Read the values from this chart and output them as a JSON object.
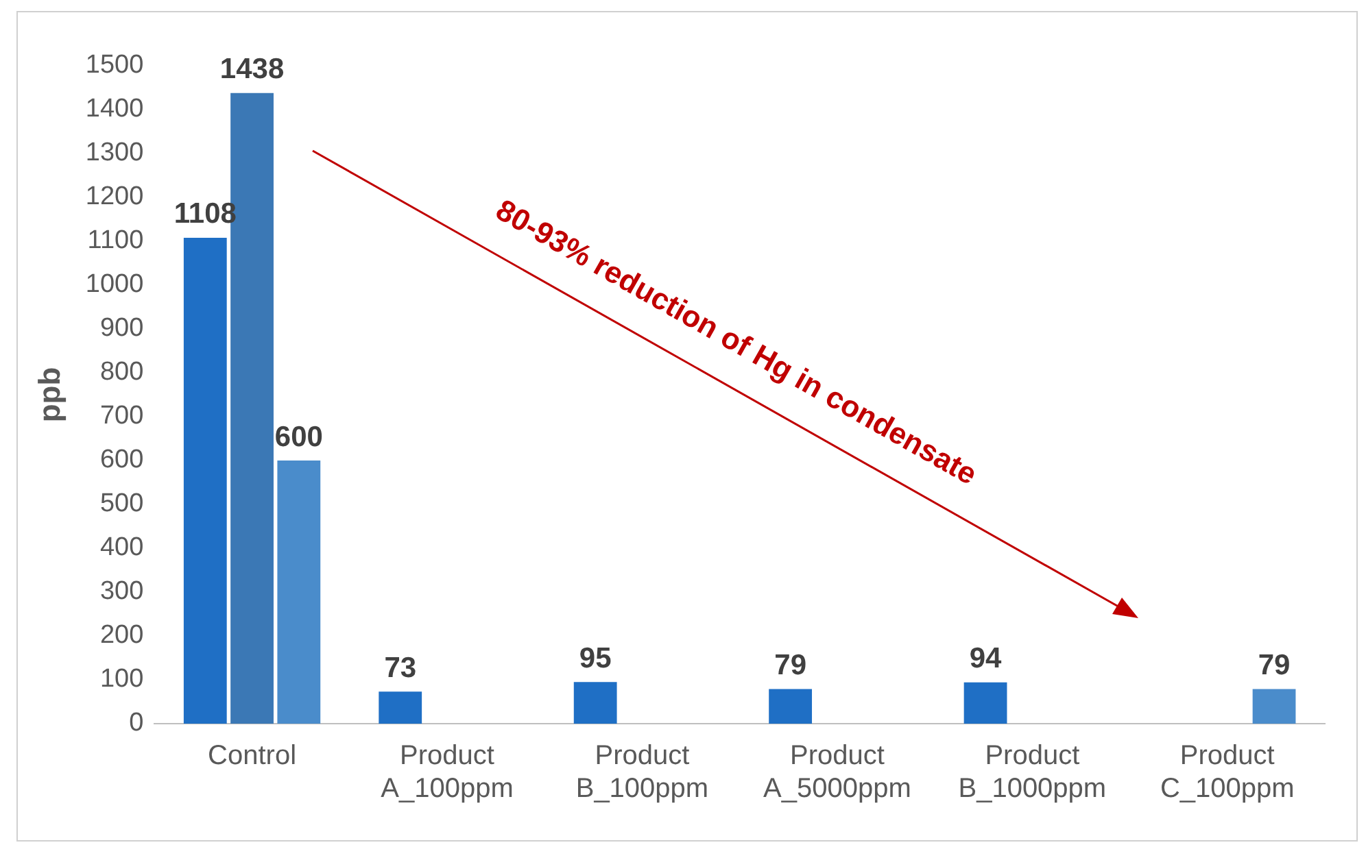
{
  "chart_data": {
    "type": "bar",
    "ylabel": "ppb",
    "categories": [
      "Control",
      "Product A_100ppm",
      "Product B_100ppm",
      "Product A_5000ppm",
      "Product B_1000ppm",
      "Product C_100ppm"
    ],
    "series": [
      {
        "color": "#1f6fc5",
        "values": [
          1108,
          73,
          95,
          79,
          94,
          null
        ]
      },
      {
        "color": "#3b78b5",
        "values": [
          1438,
          null,
          null,
          null,
          null,
          null
        ]
      },
      {
        "color": "#4a8ccb",
        "values": [
          600,
          null,
          null,
          null,
          null,
          79
        ]
      }
    ],
    "ylim": [
      0,
      1500
    ],
    "yticks": [
      0,
      100,
      200,
      300,
      400,
      500,
      600,
      700,
      800,
      900,
      1000,
      1100,
      1200,
      1300,
      1400,
      1500
    ],
    "grid": false,
    "legend": false,
    "data_labels": true,
    "annotations": [
      "80-93% reduction of Hg in condensate"
    ]
  }
}
